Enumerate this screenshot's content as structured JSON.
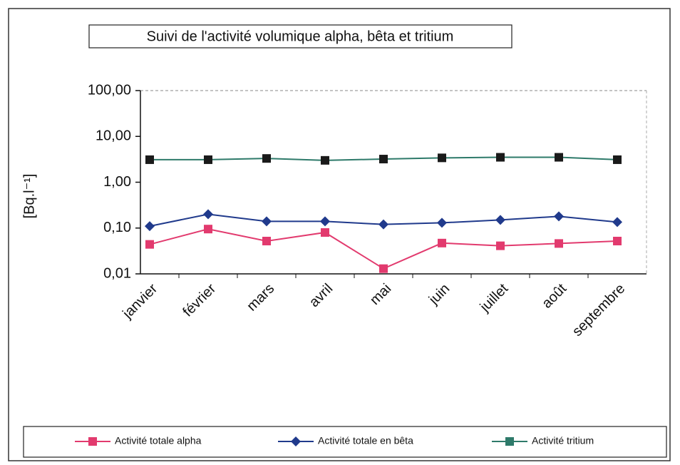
{
  "chart_data": {
    "type": "line",
    "title": "Suivi de l'activité volumique alpha, bêta et tritium",
    "y_label": "[Bq.l⁻¹]",
    "log_scale": true,
    "categories": [
      "janvier",
      "février",
      "mars",
      "avril",
      "mai",
      "juin",
      "juillet",
      "août",
      "septembre"
    ],
    "ylim": [
      0.01,
      100
    ],
    "yticks": [
      {
        "value": 0.01,
        "label": "0,01"
      },
      {
        "value": 0.1,
        "label": "0,10"
      },
      {
        "value": 1,
        "label": "1,00"
      },
      {
        "value": 10,
        "label": "10,00"
      },
      {
        "value": 100,
        "label": "100,00"
      }
    ],
    "legend": "bottom",
    "series": [
      {
        "name": "Activité totale alpha",
        "color": "#e23a6e",
        "marker": "square",
        "marker_color": "#e23a6e",
        "values": [
          0.044,
          0.095,
          0.052,
          0.08,
          0.013,
          0.047,
          0.041,
          0.046,
          0.052
        ]
      },
      {
        "name": "Activité totale en bêta",
        "color": "#203a8c",
        "marker": "diamond",
        "marker_color": "#203a8c",
        "values": [
          0.11,
          0.2,
          0.14,
          0.14,
          0.12,
          0.13,
          0.15,
          0.18,
          0.135
        ]
      },
      {
        "name": "Activité  tritium",
        "color": "#2e7a6a",
        "marker": "square",
        "marker_color": "#1a1a1a",
        "values": [
          3.1,
          3.1,
          3.3,
          3.0,
          3.2,
          3.4,
          3.5,
          3.5,
          3.1
        ]
      }
    ]
  }
}
